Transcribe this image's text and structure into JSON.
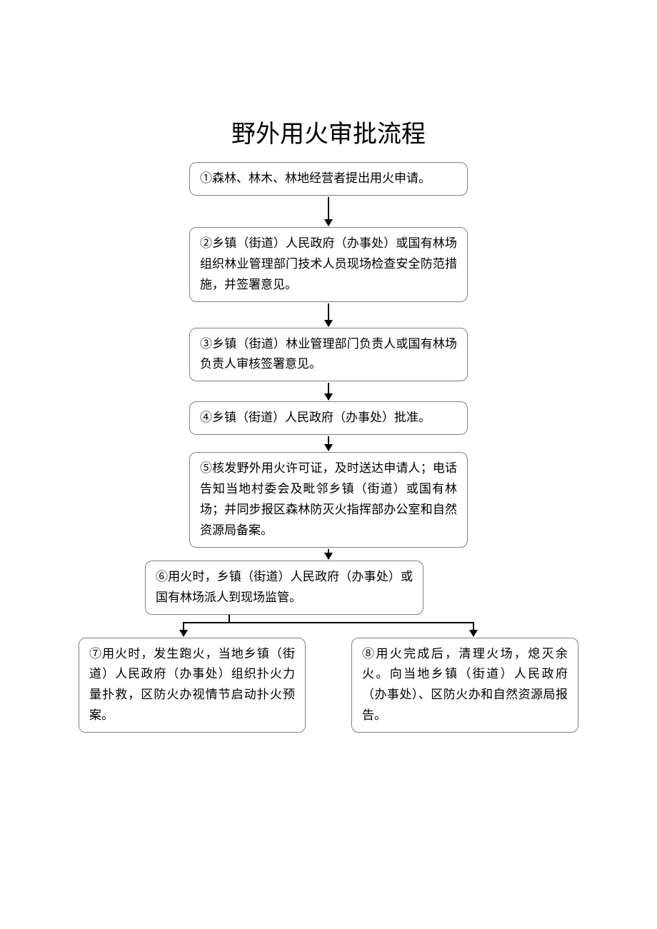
{
  "title": "野外用火审批流程",
  "style": {
    "type": "flowchart",
    "background_color": "#ffffff",
    "box_border_color": "#808080",
    "box_border_radius": 10,
    "text_color": "#000000",
    "arrow_color": "#000000",
    "title_fontsize": 34,
    "body_fontsize": 17,
    "line_height": 1.7,
    "main_box_width": 390,
    "branch_box_width": 318
  },
  "nodes": [
    {
      "id": "n1",
      "text": "①森林、林木、林地经营者提出用火申请。",
      "width": "single"
    },
    {
      "id": "n2",
      "text": "②乡镇（街道）人民政府（办事处）或国有林场组织林业管理部门技术人员现场检查安全防范措施，并签署意见。",
      "width": "single"
    },
    {
      "id": "n3",
      "text": "③乡镇（街道）林业管理部门负责人或国有林场负责人审核签署意见。",
      "width": "single"
    },
    {
      "id": "n4",
      "text": "④乡镇（街道）人民政府（办事处）批准。",
      "width": "single"
    },
    {
      "id": "n5",
      "text": "⑤核发野外用火许可证，及时送达申请人；电话告知当地村委会及毗邻乡镇（街道）或国有林场；并同步报区森林防灭火指挥部办公室和自然资源局备案。",
      "width": "single"
    },
    {
      "id": "n6",
      "text": "⑥用火时，乡镇（街道）人民政府（办事处）或国有林场派人到现场监管。",
      "width": "single"
    },
    {
      "id": "n7",
      "text": "⑦用火时，发生跑火，当地乡镇（街道）人民政府（办事处）组织扑火力量扑救，区防火办视情节启动扑火预案。",
      "width": "branch"
    },
    {
      "id": "n8",
      "text": "⑧用火完成后，清理火场，熄灭余火。向当地乡镇（街道）人民政府（办事处）、区防火办和自然资源局报告。",
      "width": "branch"
    }
  ],
  "edges": [
    {
      "from": "n1",
      "to": "n2",
      "len": 40
    },
    {
      "from": "n2",
      "to": "n3",
      "len": 32
    },
    {
      "from": "n3",
      "to": "n4",
      "len": 24
    },
    {
      "from": "n4",
      "to": "n5",
      "len": 20
    },
    {
      "from": "n5",
      "to": "n6",
      "len": 14
    },
    {
      "from": "n6",
      "to": "n7",
      "type": "branch"
    },
    {
      "from": "n6",
      "to": "n8",
      "type": "branch"
    }
  ]
}
